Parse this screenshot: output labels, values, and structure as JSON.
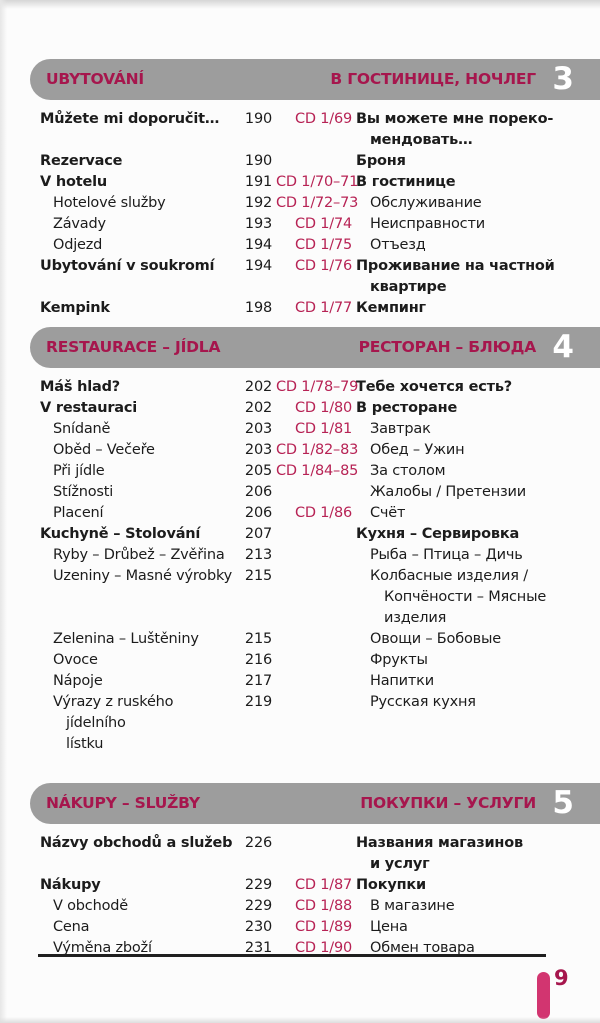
{
  "colors": {
    "accent_crimson": "#a6164d",
    "cd_ref": "#b72355",
    "header_bar_gray": "#9d9d9d",
    "page_marker": "#d23570",
    "section_number_text": "#ffffff"
  },
  "footer": {
    "page_number": "9"
  },
  "sections": [
    {
      "number": "3",
      "title_cs": "UBYTOVÁNÍ",
      "title_ru": "В ГОСТИНИЦЕ, НОЧЛЕГ",
      "rows": [
        {
          "cs": "Můžete mi doporučit…",
          "page": "190",
          "cd": "CD 1/69",
          "ru": "Вы можете мне пореко-\nмендовать…",
          "bold": true,
          "indent": false
        },
        {
          "cs": "Rezervace",
          "page": "190",
          "cd": "",
          "ru": "Броня",
          "bold": true,
          "indent": false
        },
        {
          "cs": "V hotelu",
          "page": "191",
          "cd": "CD 1/70–71",
          "ru": "В гостинице",
          "bold": true,
          "indent": false
        },
        {
          "cs": "Hotelové služby",
          "page": "192",
          "cd": "CD 1/72–73",
          "ru": "Обслуживание",
          "bold": false,
          "indent": true
        },
        {
          "cs": "Závady",
          "page": "193",
          "cd": "CD 1/74",
          "ru": "Неисправности",
          "bold": false,
          "indent": true
        },
        {
          "cs": "Odjezd",
          "page": "194",
          "cd": "CD 1/75",
          "ru": "Отъезд",
          "bold": false,
          "indent": true
        },
        {
          "cs": "Ubytování v soukromí",
          "page": "194",
          "cd": "CD 1/76",
          "ru": "Проживание на частной\nквартире",
          "bold": true,
          "indent": false
        },
        {
          "cs": "Kempink",
          "page": "198",
          "cd": "CD 1/77",
          "ru": "Кемпинг",
          "bold": true,
          "indent": false
        }
      ]
    },
    {
      "number": "4",
      "title_cs": "RESTAURACE – JÍDLA",
      "title_ru": "РЕСТОРАН – БЛЮДА",
      "rows": [
        {
          "cs": "Máš hlad?",
          "page": "202",
          "cd": "CD 1/78–79",
          "ru": "Тебе хочется есть?",
          "bold": true,
          "indent": false
        },
        {
          "cs": "V restauraci",
          "page": "202",
          "cd": "CD 1/80",
          "ru": "В ресторане",
          "bold": true,
          "indent": false
        },
        {
          "cs": "Snídaně",
          "page": "203",
          "cd": "CD 1/81",
          "ru": "Завтрак",
          "bold": false,
          "indent": true
        },
        {
          "cs": "Oběd – Večeře",
          "page": "203",
          "cd": "CD 1/82–83",
          "ru": "Обед – Ужин",
          "bold": false,
          "indent": true
        },
        {
          "cs": "Při jídle",
          "page": "205",
          "cd": "CD 1/84–85",
          "ru": "За столом",
          "bold": false,
          "indent": true
        },
        {
          "cs": "Stížnosti",
          "page": "206",
          "cd": "",
          "ru": "Жалобы / Претензии",
          "bold": false,
          "indent": true
        },
        {
          "cs": "Placení",
          "page": "206",
          "cd": "CD 1/86",
          "ru": "Счёт",
          "bold": false,
          "indent": true
        },
        {
          "cs": "Kuchyně – Stolování",
          "page": "207",
          "cd": "",
          "ru": "Кухня – Сервировка",
          "bold": true,
          "indent": false
        },
        {
          "cs": "Ryby – Drůbež – Zvěřina",
          "page": "213",
          "cd": "",
          "ru": "Рыба – Птица – Дичь",
          "bold": false,
          "indent": true
        },
        {
          "cs": "Uzeniny – Masné výrobky",
          "page": "215",
          "cd": "",
          "ru": "Колбасные изделия /\nКопчёности – Мясные\nизделия",
          "bold": false,
          "indent": true
        },
        {
          "cs": "Zelenina – Luštěniny",
          "page": "215",
          "cd": "",
          "ru": "Овощи – Бобовые",
          "bold": false,
          "indent": true
        },
        {
          "cs": "Ovoce",
          "page": "216",
          "cd": "",
          "ru": "Фрукты",
          "bold": false,
          "indent": true
        },
        {
          "cs": "Nápoje",
          "page": "217",
          "cd": "",
          "ru": "Напитки",
          "bold": false,
          "indent": true
        },
        {
          "cs": "Výrazy z ruského jídelního\nlístku",
          "page": "219",
          "cd": "",
          "ru": "Русская кухня",
          "bold": false,
          "indent": true
        }
      ]
    },
    {
      "number": "5",
      "title_cs": "NÁKUPY – SLUŽBY",
      "title_ru": "ПОКУПКИ – УСЛУГИ",
      "rows": [
        {
          "cs": "Názvy obchodů a služeb",
          "page": "226",
          "cd": "",
          "ru": "Названия магазинов\nи услуг",
          "bold": true,
          "indent": false
        },
        {
          "cs": "Nákupy",
          "page": "229",
          "cd": "CD 1/87",
          "ru": "Покупки",
          "bold": true,
          "indent": false
        },
        {
          "cs": "V obchodě",
          "page": "229",
          "cd": "CD 1/88",
          "ru": "В магазине",
          "bold": false,
          "indent": true
        },
        {
          "cs": "Cena",
          "page": "230",
          "cd": "CD 1/89",
          "ru": "Цена",
          "bold": false,
          "indent": true
        },
        {
          "cs": "Výměna zboží",
          "page": "231",
          "cd": "CD 1/90",
          "ru": "Обмен товара",
          "bold": false,
          "indent": true
        }
      ]
    }
  ]
}
